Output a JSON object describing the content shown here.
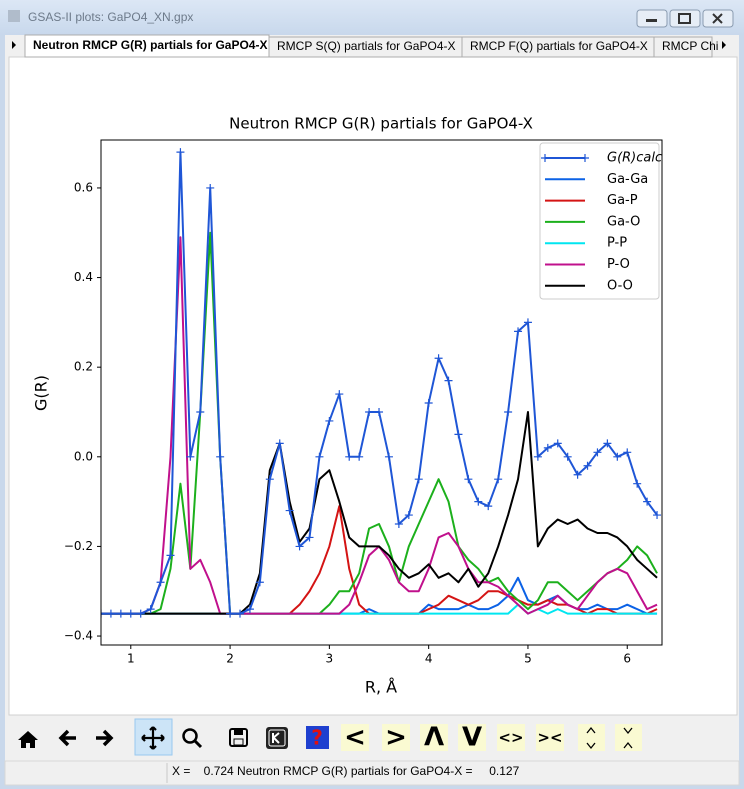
{
  "window_title": "GSAS-II plots: GaPO4_XN.gpx",
  "tabs": [
    "Neutron RMCP G(R) partials for GaPO4-X",
    "RMCP S(Q) partials for GaPO4-X",
    "RMCP F(Q) partials for GaPO4-X",
    "RMCP Chi"
  ],
  "toolbar": {
    "buttons": [
      "<",
      ">",
      "Λ",
      "V",
      "<>",
      "><"
    ]
  },
  "status": "X =    0.724 Neutron RMCP G(R) partials for GaPO4-X =     0.127",
  "chart_data": {
    "type": "line",
    "title": "Neutron RMCP G(R) partials for GaPO4-X",
    "x_label": "R, Å",
    "y_label": "G(R)",
    "xlim": [
      0.7,
      6.35
    ],
    "ylim": [
      -0.42,
      0.707
    ],
    "xticks": [
      1,
      2,
      3,
      4,
      5,
      6
    ],
    "yticks": [
      {
        "value": -0.4,
        "label": "−0.4"
      },
      {
        "value": -0.2,
        "label": "−0.2"
      },
      {
        "value": 0,
        "label": "0.0"
      },
      0.2,
      0.4,
      0.6
    ],
    "grid": false,
    "legend": "upper right",
    "x": [
      0.7,
      0.8,
      0.9,
      1.0,
      1.1,
      1.2,
      1.3,
      1.4,
      1.5,
      1.6,
      1.7,
      1.8,
      1.9,
      2.0,
      2.1,
      2.2,
      2.3,
      2.4,
      2.5,
      2.6,
      2.7,
      2.8,
      2.9,
      3.0,
      3.1,
      3.2,
      3.3,
      3.4,
      3.5,
      3.6,
      3.7,
      3.8,
      3.9,
      4.0,
      4.1,
      4.2,
      4.3,
      4.4,
      4.5,
      4.6,
      4.7,
      4.8,
      4.9,
      5.0,
      5.1,
      5.2,
      5.3,
      5.4,
      5.5,
      5.6,
      5.7,
      5.8,
      5.9,
      6.0,
      6.1,
      6.2,
      6.3
    ],
    "series": [
      {
        "name": "G(R)calc",
        "color": "#1f56d6",
        "marker": "plus",
        "values": [
          -0.35,
          -0.35,
          -0.35,
          -0.35,
          -0.35,
          -0.34,
          -0.28,
          -0.22,
          0.68,
          0.0,
          0.1,
          0.6,
          0.0,
          -0.35,
          -0.35,
          -0.34,
          -0.28,
          -0.05,
          0.03,
          -0.12,
          -0.2,
          -0.18,
          0.0,
          0.08,
          0.14,
          0.0,
          0.0,
          0.1,
          0.1,
          0.0,
          -0.15,
          -0.13,
          -0.05,
          0.12,
          0.22,
          0.17,
          0.05,
          -0.05,
          -0.1,
          -0.11,
          -0.05,
          0.1,
          0.28,
          0.3,
          0.0,
          0.02,
          0.03,
          0.0,
          -0.04,
          -0.02,
          0.01,
          0.03,
          0.0,
          0.01,
          -0.06,
          -0.1,
          -0.13
        ]
      },
      {
        "name": "Ga-Ga",
        "color": "#0c62e6",
        "values": [
          -0.35,
          -0.35,
          -0.35,
          -0.35,
          -0.35,
          -0.35,
          -0.35,
          -0.35,
          -0.35,
          -0.35,
          -0.35,
          -0.35,
          -0.35,
          -0.35,
          -0.35,
          -0.35,
          -0.35,
          -0.35,
          -0.35,
          -0.35,
          -0.35,
          -0.35,
          -0.35,
          -0.35,
          -0.35,
          -0.35,
          -0.35,
          -0.34,
          -0.35,
          -0.35,
          -0.35,
          -0.35,
          -0.35,
          -0.33,
          -0.34,
          -0.34,
          -0.34,
          -0.33,
          -0.34,
          -0.34,
          -0.33,
          -0.31,
          -0.27,
          -0.32,
          -0.33,
          -0.32,
          -0.31,
          -0.33,
          -0.34,
          -0.34,
          -0.33,
          -0.34,
          -0.34,
          -0.33,
          -0.34,
          -0.35,
          -0.35
        ]
      },
      {
        "name": "Ga-P",
        "color": "#d41414",
        "values": [
          -0.35,
          -0.35,
          -0.35,
          -0.35,
          -0.35,
          -0.35,
          -0.35,
          -0.35,
          -0.35,
          -0.35,
          -0.35,
          -0.35,
          -0.35,
          -0.35,
          -0.35,
          -0.35,
          -0.35,
          -0.35,
          -0.35,
          -0.35,
          -0.33,
          -0.3,
          -0.26,
          -0.2,
          -0.11,
          -0.25,
          -0.33,
          -0.35,
          -0.35,
          -0.35,
          -0.35,
          -0.35,
          -0.35,
          -0.34,
          -0.33,
          -0.31,
          -0.32,
          -0.33,
          -0.32,
          -0.3,
          -0.3,
          -0.31,
          -0.32,
          -0.33,
          -0.33,
          -0.32,
          -0.33,
          -0.33,
          -0.34,
          -0.35,
          -0.34,
          -0.34,
          -0.35,
          -0.35,
          -0.35,
          -0.35,
          -0.34
        ]
      },
      {
        "name": "Ga-O",
        "color": "#1cb01c",
        "values": [
          -0.35,
          -0.35,
          -0.35,
          -0.35,
          -0.35,
          -0.35,
          -0.34,
          -0.25,
          -0.06,
          -0.25,
          0.1,
          0.5,
          0.0,
          -0.35,
          -0.35,
          -0.35,
          -0.35,
          -0.35,
          -0.35,
          -0.35,
          -0.35,
          -0.35,
          -0.35,
          -0.33,
          -0.3,
          -0.3,
          -0.26,
          -0.16,
          -0.15,
          -0.2,
          -0.28,
          -0.2,
          -0.15,
          -0.1,
          -0.05,
          -0.1,
          -0.2,
          -0.23,
          -0.25,
          -0.28,
          -0.27,
          -0.3,
          -0.32,
          -0.34,
          -0.32,
          -0.28,
          -0.28,
          -0.3,
          -0.32,
          -0.3,
          -0.28,
          -0.26,
          -0.25,
          -0.23,
          -0.2,
          -0.22,
          -0.26
        ]
      },
      {
        "name": "P-P",
        "color": "#00e6f0",
        "values": [
          -0.35,
          -0.35,
          -0.35,
          -0.35,
          -0.35,
          -0.35,
          -0.35,
          -0.35,
          -0.35,
          -0.35,
          -0.35,
          -0.35,
          -0.35,
          -0.35,
          -0.35,
          -0.35,
          -0.35,
          -0.35,
          -0.35,
          -0.35,
          -0.35,
          -0.35,
          -0.35,
          -0.35,
          -0.35,
          -0.35,
          -0.35,
          -0.35,
          -0.35,
          -0.35,
          -0.35,
          -0.35,
          -0.35,
          -0.35,
          -0.35,
          -0.35,
          -0.35,
          -0.35,
          -0.35,
          -0.35,
          -0.35,
          -0.35,
          -0.33,
          -0.35,
          -0.34,
          -0.35,
          -0.34,
          -0.35,
          -0.35,
          -0.35,
          -0.35,
          -0.35,
          -0.35,
          -0.35,
          -0.35,
          -0.35,
          -0.35
        ]
      },
      {
        "name": "P-O",
        "color": "#c0108c",
        "values": [
          -0.35,
          -0.35,
          -0.35,
          -0.35,
          -0.35,
          -0.34,
          -0.28,
          0.0,
          0.49,
          -0.25,
          -0.23,
          -0.28,
          -0.35,
          -0.35,
          -0.35,
          -0.35,
          -0.35,
          -0.35,
          -0.35,
          -0.35,
          -0.35,
          -0.35,
          -0.35,
          -0.35,
          -0.35,
          -0.33,
          -0.28,
          -0.22,
          -0.2,
          -0.23,
          -0.28,
          -0.3,
          -0.3,
          -0.25,
          -0.18,
          -0.17,
          -0.2,
          -0.25,
          -0.28,
          -0.28,
          -0.29,
          -0.31,
          -0.33,
          -0.35,
          -0.34,
          -0.33,
          -0.31,
          -0.33,
          -0.34,
          -0.31,
          -0.28,
          -0.26,
          -0.25,
          -0.26,
          -0.3,
          -0.34,
          -0.33
        ]
      },
      {
        "name": "O-O",
        "color": "#000000",
        "values": [
          -0.35,
          -0.35,
          -0.35,
          -0.35,
          -0.35,
          -0.35,
          -0.35,
          -0.35,
          -0.35,
          -0.35,
          -0.35,
          -0.35,
          -0.35,
          -0.35,
          -0.35,
          -0.33,
          -0.26,
          -0.03,
          0.03,
          -0.1,
          -0.19,
          -0.16,
          -0.05,
          -0.03,
          -0.1,
          -0.18,
          -0.2,
          -0.2,
          -0.2,
          -0.22,
          -0.25,
          -0.27,
          -0.26,
          -0.24,
          -0.27,
          -0.26,
          -0.28,
          -0.25,
          -0.29,
          -0.26,
          -0.2,
          -0.13,
          -0.05,
          0.1,
          -0.2,
          -0.16,
          -0.14,
          -0.15,
          -0.14,
          -0.16,
          -0.17,
          -0.17,
          -0.18,
          -0.2,
          -0.23,
          -0.25,
          -0.27
        ]
      }
    ]
  }
}
